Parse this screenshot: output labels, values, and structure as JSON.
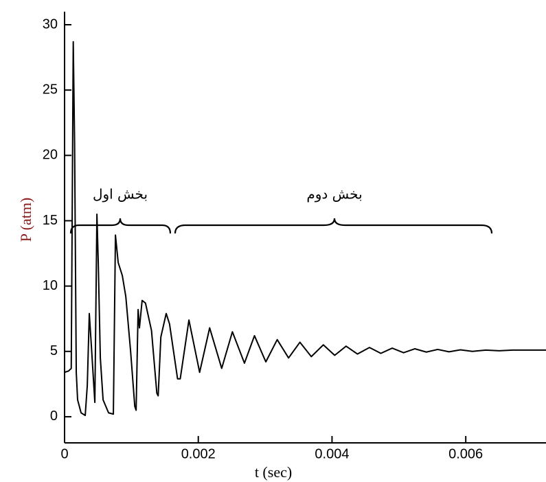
{
  "chart_data": {
    "type": "line",
    "x_label": "t (sec)",
    "y_label": "P (atm)",
    "annotations": [
      "بخش اول",
      "بخش دوم"
    ],
    "x": [
      0,
      6e-05,
      0.0001,
      0.00013,
      0.00015,
      0.000175,
      0.000195,
      0.000247,
      0.000309,
      0.00034,
      0.00037,
      0.0004,
      0.000453,
      0.000484,
      0.000504,
      0.000535,
      0.000576,
      0.000658,
      0.00073,
      0.000761,
      0.000802,
      0.000864,
      0.000916,
      0.000988,
      0.00105,
      0.00107,
      0.0011,
      0.00112,
      0.00116,
      0.00121,
      0.0013,
      0.00138,
      0.0014,
      0.00144,
      0.00152,
      0.00157,
      0.00169,
      0.00173,
      0.00186,
      0.00202,
      0.00217,
      0.00235,
      0.00251,
      0.00269,
      0.00284,
      0.00301,
      0.00318,
      0.00335,
      0.00352,
      0.00369,
      0.00387,
      0.00404,
      0.00421,
      0.00438,
      0.00456,
      0.00473,
      0.0049,
      0.00507,
      0.00524,
      0.00541,
      0.00558,
      0.00575,
      0.00592,
      0.0061,
      0.0063,
      0.0065,
      0.0067,
      0.0072
    ],
    "values": [
      3.4,
      3.5,
      3.7,
      28.7,
      21,
      3.4,
      1.3,
      0.3,
      0.1,
      2.4,
      7.9,
      5.5,
      1.1,
      15.5,
      11.8,
      4.5,
      1.3,
      0.3,
      0.2,
      13.9,
      11.8,
      10.8,
      9.2,
      5,
      0.8,
      0.5,
      8.2,
      6.8,
      8.9,
      8.7,
      6.6,
      1.8,
      1.6,
      6.1,
      7.9,
      7.1,
      2.9,
      2.9,
      7.4,
      3.4,
      6.8,
      3.7,
      6.5,
      4.1,
      6.2,
      4.2,
      5.9,
      4.5,
      5.7,
      4.6,
      5.5,
      4.7,
      5.4,
      4.8,
      5.3,
      4.85,
      5.25,
      4.9,
      5.2,
      4.95,
      5.15,
      4.97,
      5.12,
      5.0,
      5.1,
      5.05,
      5.1,
      5.1
    ],
    "color": "#000000",
    "xlim": [
      0,
      0.0072
    ],
    "ylim": [
      -2,
      31
    ],
    "xticks": [
      0,
      0.002,
      0.004,
      0.006
    ],
    "yticks": [
      0,
      5,
      10,
      15,
      20,
      25,
      30
    ]
  }
}
